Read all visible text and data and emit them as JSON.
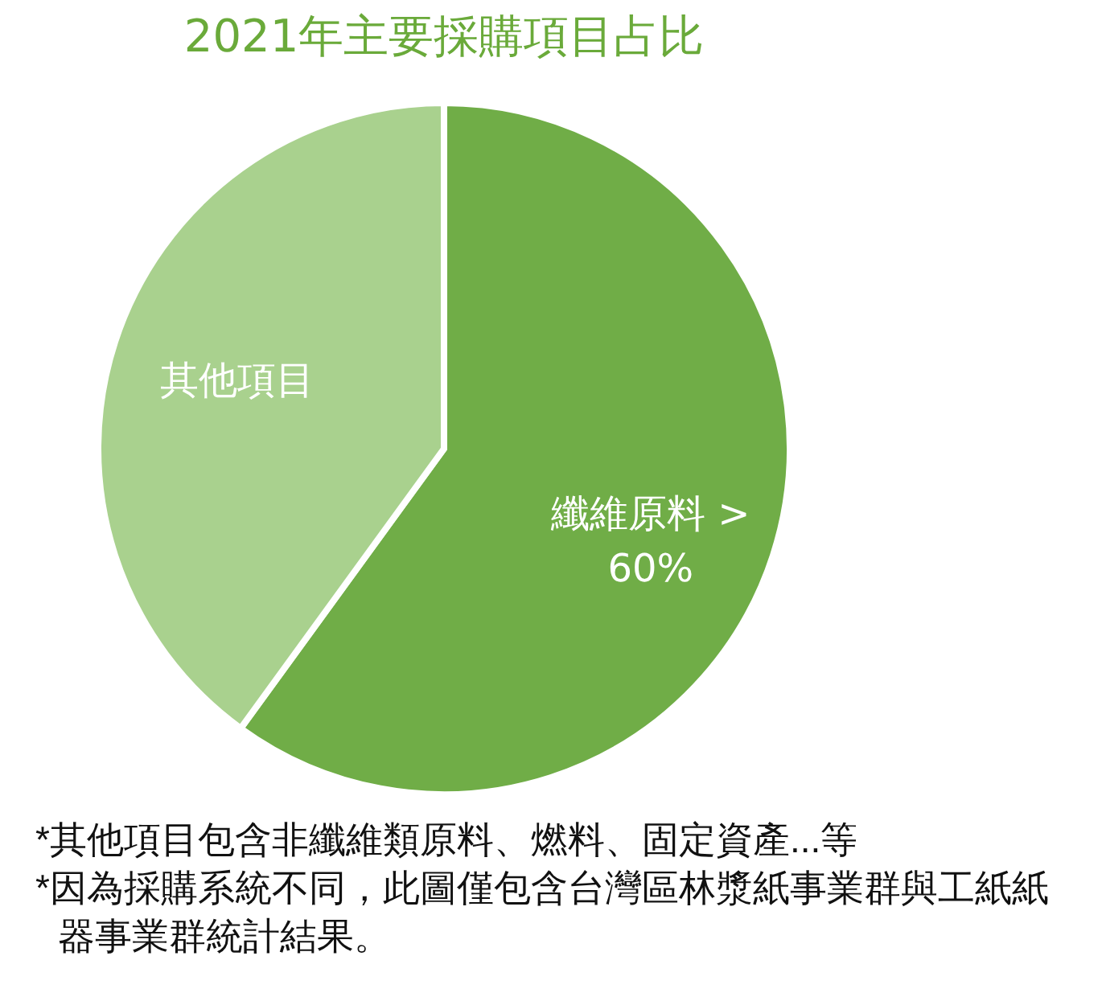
{
  "chart_data": {
    "type": "pie",
    "title": "2021年主要採購項目占比",
    "categories": [
      "纖維原料",
      "其他項目"
    ],
    "values": [
      60,
      40
    ],
    "value_labels": [
      "> 60%",
      null
    ],
    "colors": [
      "#70ad47",
      "#a9d18e"
    ],
    "legend": false,
    "annotations": [
      "*其他項目包含非纖維類原料、燃料、固定資產...等",
      "*因為採購系統不同，此圖僅包含台灣區林漿紙事業群與工紙紙器事業群統計結果。"
    ]
  }
}
